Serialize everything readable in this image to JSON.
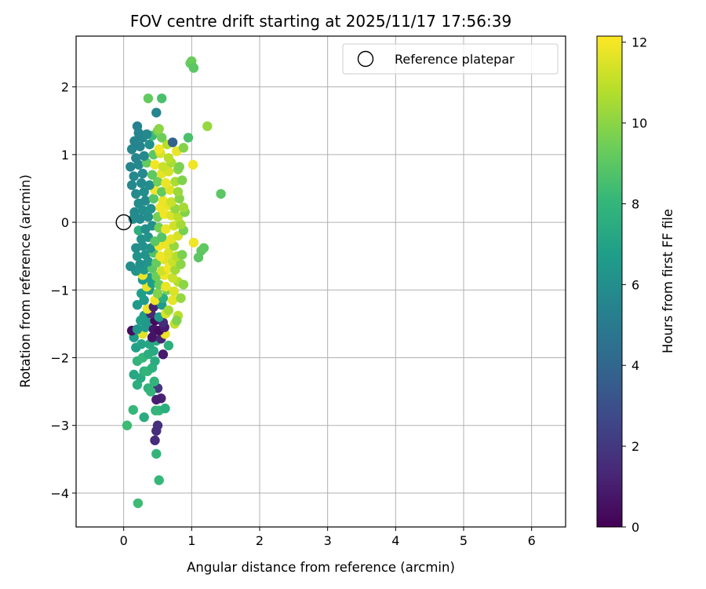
{
  "chart_data": {
    "type": "scatter",
    "title": "FOV centre drift starting at 2025/11/17 17:56:39",
    "xlabel": "Angular distance from reference (arcmin)",
    "ylabel": "Rotation from reference (arcmin)",
    "xlim": [
      -0.7,
      6.5
    ],
    "ylim": [
      -4.5,
      2.75
    ],
    "xticks": [
      0,
      1,
      2,
      3,
      4,
      5,
      6
    ],
    "yticks": [
      -4,
      -3,
      -2,
      -1,
      0,
      1,
      2
    ],
    "grid": true,
    "legend": {
      "placement": "top-right",
      "entries": [
        "Reference platepar"
      ]
    },
    "colorbar": {
      "label": "Hours from first FF file",
      "min": 0,
      "max": 12.15,
      "ticks": [
        0,
        2,
        4,
        6,
        8,
        10,
        12
      ],
      "colormap": "viridis"
    },
    "reference_point": {
      "x": 0,
      "y": 0,
      "name": "Reference platepar"
    },
    "points": [
      [
        0.05,
        -3.0,
        8.3
      ],
      [
        0.21,
        -4.15,
        8.3
      ],
      [
        0.14,
        -2.77,
        8.1
      ],
      [
        0.3,
        -2.88,
        7.5
      ],
      [
        0.47,
        -2.78,
        7.9
      ],
      [
        0.52,
        -2.78,
        8.0
      ],
      [
        0.61,
        -2.75,
        7.6
      ],
      [
        0.52,
        -3.81,
        8.1
      ],
      [
        0.48,
        -3.42,
        8.0
      ],
      [
        0.46,
        -3.22,
        1.5
      ],
      [
        0.48,
        -3.08,
        1.6
      ],
      [
        0.5,
        -3.0,
        1.7
      ],
      [
        0.55,
        -2.6,
        1.2
      ],
      [
        0.48,
        -2.62,
        1.0
      ],
      [
        0.5,
        -2.45,
        2.0
      ],
      [
        0.36,
        -2.45,
        7.8
      ],
      [
        0.4,
        -2.5,
        8.0
      ],
      [
        0.45,
        -2.35,
        7.9
      ],
      [
        0.2,
        -2.4,
        7.6
      ],
      [
        0.25,
        -2.3,
        7.4
      ],
      [
        0.15,
        -2.25,
        7.3
      ],
      [
        0.3,
        -2.2,
        7.8
      ],
      [
        0.35,
        -2.2,
        8.0
      ],
      [
        0.42,
        -2.15,
        7.7
      ],
      [
        0.46,
        -2.05,
        7.5
      ],
      [
        0.2,
        -2.05,
        7.9
      ],
      [
        0.28,
        -2.0,
        8.1
      ],
      [
        0.36,
        -1.95,
        7.6
      ],
      [
        0.44,
        -1.9,
        7.4
      ],
      [
        0.58,
        -1.95,
        0.9
      ],
      [
        0.18,
        -1.85,
        6.9
      ],
      [
        0.26,
        -1.8,
        7.1
      ],
      [
        0.38,
        -1.8,
        7.2
      ],
      [
        0.48,
        -1.75,
        7.3
      ],
      [
        0.66,
        -1.82,
        7.7
      ],
      [
        0.15,
        -1.7,
        6.5
      ],
      [
        0.28,
        -1.65,
        11.6
      ],
      [
        0.42,
        -1.7,
        0.6
      ],
      [
        0.55,
        -1.72,
        1.2
      ],
      [
        0.61,
        -1.65,
        11.8
      ],
      [
        0.12,
        -1.6,
        0.5
      ],
      [
        0.2,
        -1.58,
        6.4
      ],
      [
        0.32,
        -1.55,
        6.6
      ],
      [
        0.44,
        -1.58,
        0.7
      ],
      [
        0.52,
        -1.6,
        0.4
      ],
      [
        0.6,
        -1.55,
        1.0
      ],
      [
        0.25,
        -1.45,
        6.8
      ],
      [
        0.34,
        -1.48,
        6.5
      ],
      [
        0.46,
        -1.45,
        0.3
      ],
      [
        0.58,
        -1.48,
        1.5
      ],
      [
        0.75,
        -1.5,
        11.0
      ],
      [
        0.3,
        -1.38,
        6.7
      ],
      [
        0.4,
        -1.35,
        1.3
      ],
      [
        0.52,
        -1.4,
        6.6
      ],
      [
        0.62,
        -1.35,
        11.5
      ],
      [
        0.8,
        -1.38,
        10.9
      ],
      [
        0.35,
        -1.28,
        11.8
      ],
      [
        0.44,
        -1.25,
        1.1
      ],
      [
        0.56,
        -1.22,
        6.6
      ],
      [
        0.66,
        -1.3,
        10.5
      ],
      [
        0.78,
        -1.45,
        9.8
      ],
      [
        0.2,
        -1.22,
        6.5
      ],
      [
        0.3,
        -1.15,
        6.6
      ],
      [
        0.46,
        -1.15,
        11.9
      ],
      [
        0.58,
        -1.12,
        7.6
      ],
      [
        0.72,
        -1.15,
        11.7
      ],
      [
        0.84,
        -1.12,
        10.2
      ],
      [
        0.26,
        -1.05,
        6.8
      ],
      [
        0.38,
        -1.0,
        6.5
      ],
      [
        0.5,
        -1.05,
        9.8
      ],
      [
        0.64,
        -1.0,
        9.5
      ],
      [
        0.74,
        -1.02,
        11.5
      ],
      [
        0.34,
        -0.95,
        11.7
      ],
      [
        0.42,
        -0.9,
        6.8
      ],
      [
        0.52,
        -0.92,
        9.3
      ],
      [
        0.62,
        -0.95,
        11.8
      ],
      [
        0.8,
        -0.88,
        10.8
      ],
      [
        0.88,
        -0.92,
        10.0
      ],
      [
        0.28,
        -0.85,
        6.6
      ],
      [
        0.38,
        -0.82,
        6.7
      ],
      [
        0.48,
        -0.8,
        9.4
      ],
      [
        0.6,
        -0.78,
        11.9
      ],
      [
        0.72,
        -0.82,
        11.2
      ],
      [
        0.28,
        -0.78,
        11.8
      ],
      [
        0.18,
        -0.72,
        6.3
      ],
      [
        0.3,
        -0.7,
        6.4
      ],
      [
        0.42,
        -0.68,
        9.0
      ],
      [
        0.56,
        -0.72,
        11.3
      ],
      [
        0.66,
        -0.68,
        11.9
      ],
      [
        0.76,
        -0.7,
        10.4
      ],
      [
        0.1,
        -0.65,
        6.0
      ],
      [
        0.24,
        -0.62,
        6.1
      ],
      [
        0.36,
        -0.58,
        6.3
      ],
      [
        0.48,
        -0.6,
        9.3
      ],
      [
        0.6,
        -0.55,
        11.6
      ],
      [
        0.72,
        -0.58,
        11.2
      ],
      [
        0.84,
        -0.62,
        10.0
      ],
      [
        0.2,
        -0.5,
        6.2
      ],
      [
        0.32,
        -0.48,
        6.2
      ],
      [
        0.44,
        -0.45,
        8.8
      ],
      [
        0.54,
        -0.5,
        11.9
      ],
      [
        0.66,
        -0.45,
        11.5
      ],
      [
        0.78,
        -0.5,
        10.8
      ],
      [
        1.1,
        -0.52,
        9.0
      ],
      [
        1.14,
        -0.42,
        9.0
      ],
      [
        1.18,
        -0.38,
        9.1
      ],
      [
        1.03,
        -0.3,
        11.9
      ],
      [
        0.86,
        -0.48,
        9.7
      ],
      [
        0.18,
        -0.38,
        6.0
      ],
      [
        0.28,
        -0.35,
        6.1
      ],
      [
        0.4,
        -0.38,
        6.2
      ],
      [
        0.52,
        -0.35,
        11.9
      ],
      [
        0.62,
        -0.32,
        11.8
      ],
      [
        0.74,
        -0.35,
        10.2
      ],
      [
        0.26,
        -0.25,
        6.1
      ],
      [
        0.36,
        -0.22,
        6.2
      ],
      [
        0.46,
        -0.28,
        9.0
      ],
      [
        0.56,
        -0.22,
        8.8
      ],
      [
        0.7,
        -0.25,
        11.7
      ],
      [
        0.8,
        -0.2,
        11.4
      ],
      [
        0.88,
        -0.12,
        9.6
      ],
      [
        0.22,
        -0.12,
        7.6
      ],
      [
        0.32,
        -0.1,
        6.0
      ],
      [
        0.42,
        -0.05,
        6.1
      ],
      [
        0.52,
        -0.08,
        9.5
      ],
      [
        0.62,
        -0.1,
        11.8
      ],
      [
        0.74,
        -0.05,
        11.3
      ],
      [
        0.84,
        -0.03,
        10.5
      ],
      [
        0.14,
        0.05,
        5.9
      ],
      [
        0.24,
        0.05,
        5.8
      ],
      [
        0.36,
        0.08,
        6.0
      ],
      [
        0.5,
        0.08,
        9.6
      ],
      [
        0.6,
        0.12,
        11.9
      ],
      [
        0.7,
        0.1,
        11.5
      ],
      [
        0.8,
        0.08,
        10.9
      ],
      [
        0.9,
        0.15,
        9.8
      ],
      [
        0.16,
        0.15,
        5.8
      ],
      [
        0.28,
        0.18,
        6.0
      ],
      [
        0.4,
        0.2,
        6.1
      ],
      [
        0.54,
        0.22,
        11.9
      ],
      [
        0.66,
        0.25,
        11.7
      ],
      [
        0.76,
        0.2,
        10.2
      ],
      [
        0.88,
        0.22,
        10.5
      ],
      [
        0.22,
        0.28,
        5.9
      ],
      [
        0.32,
        0.32,
        5.8
      ],
      [
        0.44,
        0.35,
        8.9
      ],
      [
        0.58,
        0.32,
        11.8
      ],
      [
        0.7,
        0.3,
        11.2
      ],
      [
        0.82,
        0.35,
        9.9
      ],
      [
        0.18,
        0.42,
        5.8
      ],
      [
        0.3,
        0.45,
        5.9
      ],
      [
        0.46,
        0.48,
        11.9
      ],
      [
        0.56,
        0.45,
        9.2
      ],
      [
        0.68,
        0.48,
        11.6
      ],
      [
        0.8,
        0.45,
        10.3
      ],
      [
        1.43,
        0.42,
        9.0
      ],
      [
        0.12,
        0.55,
        5.7
      ],
      [
        0.26,
        0.58,
        5.8
      ],
      [
        0.38,
        0.55,
        6.0
      ],
      [
        0.5,
        0.6,
        9.4
      ],
      [
        0.62,
        0.58,
        11.8
      ],
      [
        0.76,
        0.6,
        10.6
      ],
      [
        0.86,
        0.62,
        9.8
      ],
      [
        0.15,
        0.68,
        5.7
      ],
      [
        0.28,
        0.72,
        5.8
      ],
      [
        0.42,
        0.7,
        9.1
      ],
      [
        0.56,
        0.72,
        11.7
      ],
      [
        0.66,
        0.75,
        11.4
      ],
      [
        0.8,
        0.78,
        10.0
      ],
      [
        0.1,
        0.82,
        5.6
      ],
      [
        0.22,
        0.85,
        5.7
      ],
      [
        0.34,
        0.88,
        9.2
      ],
      [
        0.46,
        0.85,
        11.9
      ],
      [
        0.58,
        0.82,
        11.2
      ],
      [
        0.7,
        0.88,
        10.6
      ],
      [
        0.82,
        0.82,
        9.7
      ],
      [
        1.02,
        0.85,
        11.9
      ],
      [
        0.18,
        0.95,
        5.6
      ],
      [
        0.3,
        0.98,
        5.7
      ],
      [
        0.44,
        1.0,
        9.0
      ],
      [
        0.54,
        1.02,
        11.4
      ],
      [
        0.66,
        0.95,
        10.9
      ],
      [
        0.78,
        1.05,
        11.8
      ],
      [
        0.88,
        1.1,
        9.9
      ],
      [
        0.12,
        1.08,
        5.6
      ],
      [
        0.24,
        1.12,
        5.5
      ],
      [
        0.38,
        1.15,
        6.1
      ],
      [
        0.52,
        1.08,
        11.9
      ],
      [
        0.64,
        1.15,
        10.8
      ],
      [
        0.72,
        1.18,
        3.8
      ],
      [
        0.16,
        1.2,
        5.5
      ],
      [
        0.28,
        1.25,
        5.6
      ],
      [
        0.42,
        1.28,
        8.2
      ],
      [
        0.56,
        1.25,
        9.4
      ],
      [
        0.22,
        1.32,
        5.5
      ],
      [
        0.34,
        1.3,
        5.7
      ],
      [
        0.5,
        1.35,
        9.6
      ],
      [
        0.95,
        1.25,
        8.6
      ],
      [
        1.23,
        1.42,
        10.2
      ],
      [
        0.2,
        1.42,
        5.4
      ],
      [
        0.52,
        1.38,
        10.0
      ],
      [
        0.48,
        1.62,
        5.5
      ],
      [
        0.36,
        1.83,
        9.2
      ],
      [
        0.56,
        1.83,
        8.6
      ],
      [
        0.98,
        2.35,
        9.2
      ],
      [
        1.0,
        2.38,
        9.3
      ],
      [
        1.03,
        2.28,
        9.0
      ]
    ]
  }
}
